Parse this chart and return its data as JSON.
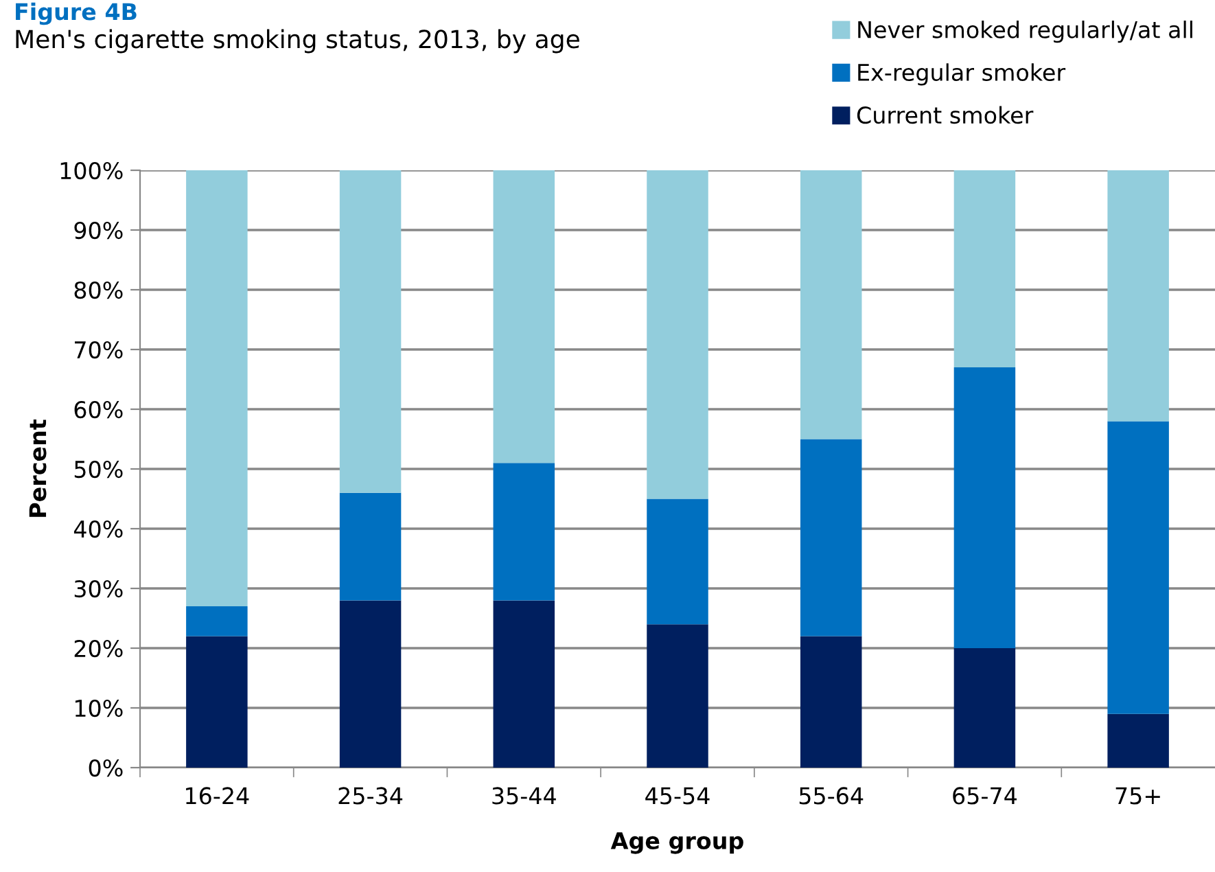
{
  "chart_data": {
    "type": "bar",
    "stacked": true,
    "title": "Figure 4B",
    "subtitle": "Men's cigarette smoking status, 2013, by age",
    "xlabel": "Age group",
    "ylabel": "Percent",
    "categories": [
      "16-24",
      "25-34",
      "35-44",
      "45-54",
      "55-64",
      "65-74",
      "75+"
    ],
    "series": [
      {
        "name": "Current smoker",
        "color": "#001f5f",
        "values": [
          22,
          28,
          28,
          24,
          22,
          20,
          9
        ]
      },
      {
        "name": "Ex-regular smoker",
        "color": "#0070c0",
        "values": [
          5,
          18,
          23,
          21,
          33,
          47,
          49
        ]
      },
      {
        "name": "Never smoked regularly/at all",
        "color": "#92cddc",
        "values": [
          73,
          54,
          49,
          55,
          45,
          33,
          42
        ]
      }
    ],
    "ylim": [
      0,
      100
    ],
    "yticks": [
      {
        "value": 0,
        "label": "0%"
      },
      {
        "value": 10,
        "label": "10%"
      },
      {
        "value": 20,
        "label": "20%"
      },
      {
        "value": 30,
        "label": "30%"
      },
      {
        "value": 40,
        "label": "40%"
      },
      {
        "value": 50,
        "label": "50%"
      },
      {
        "value": 60,
        "label": "60%"
      },
      {
        "value": 70,
        "label": "70%"
      },
      {
        "value": 80,
        "label": "80%"
      },
      {
        "value": 90,
        "label": "90%"
      },
      {
        "value": 100,
        "label": "100%"
      }
    ],
    "grid": "y",
    "legend": "top right"
  }
}
